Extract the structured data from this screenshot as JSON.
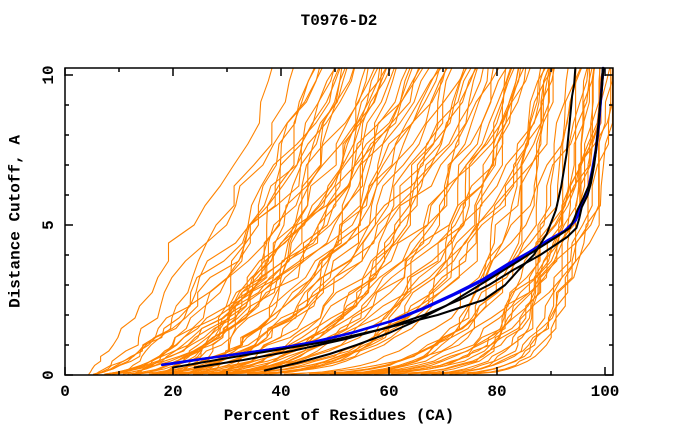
{
  "chart_data": {
    "type": "line",
    "title": "T0976-D2",
    "xlabel": "Percent of Residues (CA)",
    "ylabel": "Distance Cutoff, A",
    "xlim": [
      0,
      101.5
    ],
    "ylim": [
      0,
      10.23
    ],
    "x_major_ticks": [
      0,
      20,
      40,
      60,
      80,
      100
    ],
    "x_minor_ticks": [
      10,
      30,
      50,
      70,
      90
    ],
    "y_major_ticks": [
      0,
      5,
      10
    ],
    "y_minor_ticks": [
      1,
      2,
      3,
      4,
      6,
      7,
      8,
      9
    ],
    "grid": false,
    "legend_position": "none",
    "colors": {
      "background": "#ffffff",
      "frame": "#000000",
      "text": "#000000",
      "model_orange": "#ff8300",
      "reference_blue": "#0000ee",
      "reference_black": "#000000"
    },
    "reference_series": [
      {
        "name": "black-reference-1",
        "color": "#000000",
        "width": 2,
        "points_percent_cutoff": [
          [
            20,
            0.25
          ],
          [
            28,
            0.5
          ],
          [
            38,
            0.8
          ],
          [
            48,
            1.1
          ],
          [
            58,
            1.5
          ],
          [
            69,
            2.0
          ],
          [
            77.5,
            2.5
          ],
          [
            81.5,
            3.0
          ],
          [
            84,
            3.5
          ],
          [
            86.8,
            4.0
          ],
          [
            89.2,
            4.7
          ],
          [
            90.9,
            5.5
          ],
          [
            91.9,
            6.3
          ],
          [
            92.9,
            7.4
          ],
          [
            93.5,
            8.5
          ],
          [
            93.9,
            9.3
          ],
          [
            94.3,
            9.7
          ],
          [
            94.5,
            10.23
          ]
        ]
      },
      {
        "name": "black-reference-2",
        "color": "#000000",
        "width": 2,
        "points_percent_cutoff": [
          [
            24,
            0.25
          ],
          [
            33,
            0.5
          ],
          [
            42,
            0.8
          ],
          [
            52,
            1.2
          ],
          [
            60,
            1.6
          ],
          [
            66.5,
            2.0
          ],
          [
            73,
            2.5
          ],
          [
            78.5,
            3.0
          ],
          [
            83,
            3.5
          ],
          [
            88,
            4.0
          ],
          [
            90.5,
            4.3
          ],
          [
            93,
            4.6
          ],
          [
            94.7,
            4.9
          ],
          [
            95.2,
            5.2
          ],
          [
            95.7,
            5.6
          ],
          [
            96.8,
            6.0
          ],
          [
            97.4,
            6.4
          ],
          [
            98.0,
            7.0
          ],
          [
            98.4,
            7.6
          ],
          [
            98.8,
            8.3
          ],
          [
            99.1,
            9.0
          ],
          [
            99.45,
            9.6
          ],
          [
            99.7,
            10.23
          ]
        ]
      },
      {
        "name": "black-reference-3",
        "color": "#000000",
        "width": 2,
        "points_percent_cutoff": [
          [
            37,
            0.15
          ],
          [
            43,
            0.4
          ],
          [
            49,
            0.7
          ],
          [
            54,
            1.0
          ],
          [
            60,
            1.4
          ],
          [
            65,
            1.8
          ],
          [
            70.5,
            2.3
          ],
          [
            75,
            2.8
          ],
          [
            79.5,
            3.3
          ],
          [
            84,
            3.8
          ],
          [
            87.5,
            4.2
          ],
          [
            91,
            4.6
          ],
          [
            93.5,
            4.9
          ],
          [
            94.3,
            5.2
          ],
          [
            94.9,
            5.5
          ],
          [
            96,
            5.9
          ],
          [
            97.2,
            6.4
          ],
          [
            97.9,
            7.0
          ],
          [
            98.5,
            7.8
          ],
          [
            98.9,
            8.6
          ],
          [
            99.3,
            9.4
          ],
          [
            99.6,
            10.23
          ]
        ]
      },
      {
        "name": "blue-reference-1",
        "color": "#0000ee",
        "width": 2.6,
        "points_percent_cutoff": [
          [
            18,
            0.34
          ],
          [
            24,
            0.5
          ],
          [
            32,
            0.7
          ],
          [
            40,
            0.9
          ],
          [
            46,
            1.1
          ],
          [
            53,
            1.4
          ],
          [
            60.5,
            1.8
          ],
          [
            66,
            2.2
          ],
          [
            72,
            2.7
          ],
          [
            77.5,
            3.2
          ],
          [
            82,
            3.7
          ],
          [
            86,
            4.1
          ],
          [
            89.5,
            4.5
          ],
          [
            92.5,
            4.8
          ],
          [
            94.2,
            5.1
          ],
          [
            95.0,
            5.4
          ],
          [
            96.1,
            5.8
          ],
          [
            96.9,
            6.2
          ],
          [
            97.6,
            6.8
          ],
          [
            98.3,
            7.5
          ],
          [
            98.8,
            8.3
          ],
          [
            99.2,
            9.2
          ],
          [
            99.65,
            10.23
          ]
        ]
      },
      {
        "name": "blue-reference-2",
        "color": "#0000ee",
        "width": 2.2,
        "points_percent_cutoff": [
          [
            19.5,
            0.36
          ],
          [
            26,
            0.55
          ],
          [
            34,
            0.75
          ],
          [
            41.5,
            0.95
          ],
          [
            47.5,
            1.15
          ],
          [
            54,
            1.45
          ],
          [
            61.5,
            1.85
          ],
          [
            67,
            2.25
          ],
          [
            73,
            2.75
          ],
          [
            78.5,
            3.25
          ],
          [
            83,
            3.75
          ],
          [
            87,
            4.15
          ],
          [
            90.5,
            4.55
          ],
          [
            93,
            4.85
          ],
          [
            94.6,
            5.15
          ],
          [
            95.3,
            5.45
          ],
          [
            96.3,
            5.85
          ],
          [
            97.1,
            6.25
          ],
          [
            97.8,
            6.85
          ],
          [
            98.4,
            7.55
          ],
          [
            98.9,
            8.35
          ],
          [
            99.3,
            9.25
          ],
          [
            99.7,
            10.23
          ]
        ]
      }
    ],
    "model_ensemble": {
      "description": "orange per-model distance-cutoff curves (monotonic, fan from lower-left start 4-28% up to top crossings between 25% and 100%)",
      "color": "#ff8300",
      "width": 1.1,
      "count": 95,
      "seed": 20181101,
      "x_start_range": [
        4,
        28
      ],
      "x_top_range": [
        25,
        101.3
      ],
      "x_top_bias": 0.45,
      "shape_exponent_range": [
        0.07,
        1.05
      ],
      "jitter": 5
    },
    "plot_frame": {
      "ticks_inward_mirrored": true,
      "major_tick_len": 8,
      "minor_tick_len": 4
    }
  }
}
